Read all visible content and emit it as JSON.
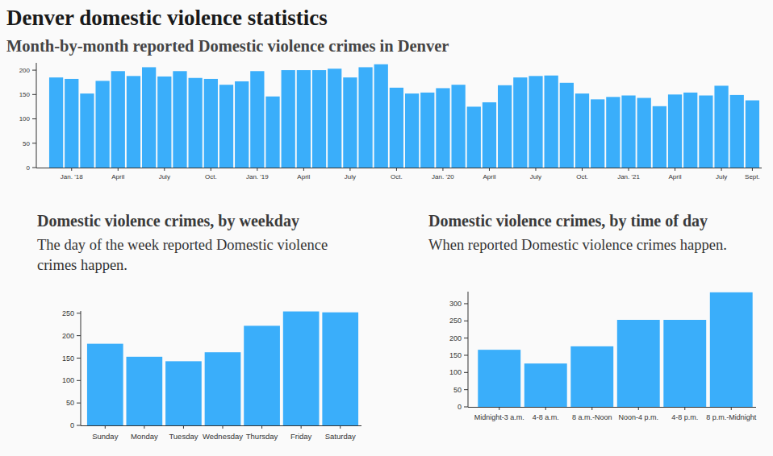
{
  "title": "Denver domestic violence statistics",
  "chart_data": [
    {
      "type": "bar",
      "title": "Month-by-month reported Domestic violence crimes in Denver",
      "categories": [
        null,
        "Jan. '18",
        null,
        null,
        "April",
        null,
        null,
        "July",
        null,
        null,
        "Oct.",
        null,
        null,
        "Jan. '19",
        null,
        null,
        "April",
        null,
        null,
        "July",
        null,
        null,
        "Oct.",
        null,
        null,
        "Jan. '20",
        null,
        null,
        "April",
        null,
        null,
        "July",
        null,
        null,
        "Oct.",
        null,
        null,
        "Jan. '21",
        null,
        null,
        "April",
        null,
        null,
        "July",
        null,
        "Sept."
      ],
      "values": [
        185,
        182,
        152,
        178,
        198,
        188,
        206,
        187,
        198,
        184,
        182,
        170,
        177,
        198,
        146,
        200,
        200,
        200,
        203,
        185,
        206,
        212,
        164,
        152,
        154,
        163,
        170,
        125,
        134,
        169,
        185,
        188,
        189,
        174,
        152,
        140,
        145,
        148,
        143,
        126,
        150,
        154,
        148,
        168,
        149,
        138
      ],
      "color": "#3aaefa",
      "ylim": [
        0,
        215
      ],
      "yticks": [
        0,
        50,
        100,
        150,
        200
      ]
    },
    {
      "type": "bar",
      "title": "Domestic violence crimes, by weekday",
      "subtitle": "The day of the week reported Domestic violence crimes happen.",
      "categories": [
        "Sunday",
        "Monday",
        "Tuesday",
        "Wednesday",
        "Thursday",
        "Friday",
        "Saturday"
      ],
      "values": [
        182,
        153,
        143,
        163,
        222,
        254,
        252
      ],
      "color": "#3aaefa",
      "ylim": [
        0,
        255
      ],
      "yticks": [
        0,
        50,
        100,
        150,
        200,
        250
      ]
    },
    {
      "type": "bar",
      "title": "Domestic violence crimes, by time of day",
      "subtitle": "When reported Domestic violence crimes happen.",
      "categories": [
        "Midnight-3 a.m.",
        "4-8 a.m.",
        "8 a.m.-Noon",
        "Noon-4 p.m.",
        "4-8 p.m.",
        "8 p.m.-Midnight"
      ],
      "values": [
        166,
        126,
        176,
        253,
        253,
        333
      ],
      "color": "#3aaefa",
      "ylim": [
        0,
        335
      ],
      "yticks": [
        0,
        50,
        100,
        150,
        200,
        250,
        300
      ]
    }
  ]
}
